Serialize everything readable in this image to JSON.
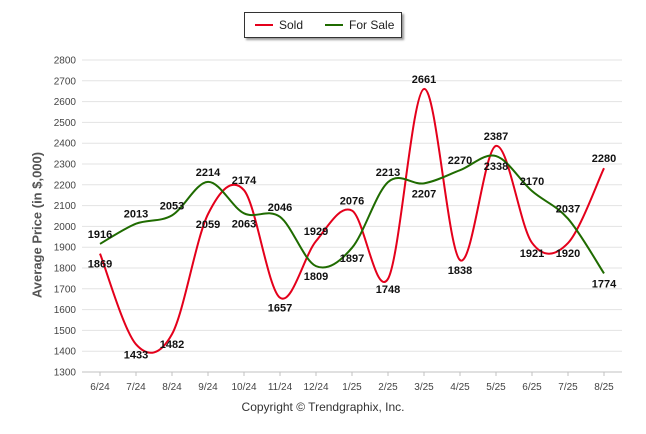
{
  "chart_data": {
    "type": "line",
    "title": "",
    "xlabel": "",
    "ylabel": "Average Price (in $,000)",
    "categories": [
      "6/24",
      "7/24",
      "8/24",
      "9/24",
      "10/24",
      "11/24",
      "12/24",
      "1/25",
      "2/25",
      "3/25",
      "4/25",
      "5/25",
      "6/25",
      "7/25",
      "8/25"
    ],
    "ylim": [
      1300,
      2800
    ],
    "yticks": [
      1300,
      1400,
      1500,
      1600,
      1700,
      1800,
      1900,
      2000,
      2100,
      2200,
      2300,
      2400,
      2500,
      2600,
      2700,
      2800
    ],
    "grid": true,
    "legend_position": "top-center",
    "series": [
      {
        "name": "Sold",
        "color": "#e4001b",
        "values": [
          1869,
          1433,
          1482,
          2059,
          2174,
          1657,
          1929,
          2076,
          1748,
          2661,
          1838,
          2387,
          1921,
          1920,
          2280
        ]
      },
      {
        "name": "For Sale",
        "color": "#1f6b00",
        "values": [
          1916,
          2013,
          2053,
          2214,
          2063,
          2046,
          1809,
          1897,
          2213,
          2207,
          2270,
          2338,
          2170,
          2037,
          1774
        ]
      }
    ]
  },
  "footer": {
    "copyright": "Copyright © Trendgraphix, Inc."
  }
}
